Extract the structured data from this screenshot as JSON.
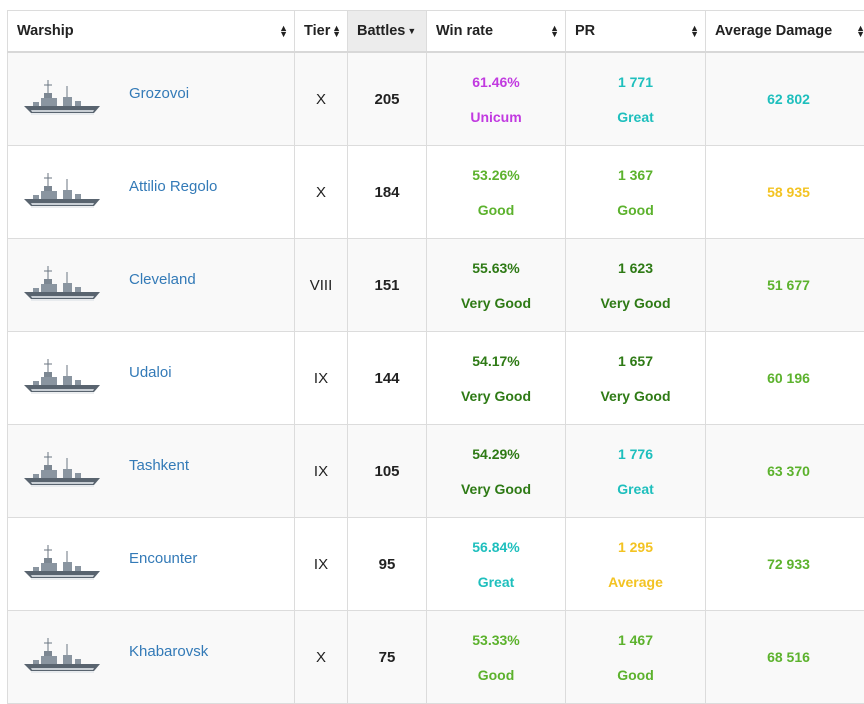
{
  "headers": {
    "warship": "Warship",
    "tier": "Tier",
    "battles": "Battles",
    "winrate": "Win rate",
    "pr": "PR",
    "avg_damage": "Average Damage"
  },
  "colors": {
    "Unicum": "#c13ae0",
    "Great": "#1ebfbd",
    "Good": "#5cb22d",
    "Very Good": "#2e7a15",
    "Average": "#f3c322",
    "link": "#337ab7"
  },
  "rows": [
    {
      "name": "Grozovoi",
      "tier": "X",
      "battles": "205",
      "winrate": "61.46%",
      "winrate_label": "Unicum",
      "pr": "1 771",
      "pr_label": "Great",
      "avg_damage": "62 802",
      "damage_rating": "Great"
    },
    {
      "name": "Attilio Regolo",
      "tier": "X",
      "battles": "184",
      "winrate": "53.26%",
      "winrate_label": "Good",
      "pr": "1 367",
      "pr_label": "Good",
      "avg_damage": "58 935",
      "damage_rating": "Average"
    },
    {
      "name": "Cleveland",
      "tier": "VIII",
      "battles": "151",
      "winrate": "55.63%",
      "winrate_label": "Very Good",
      "pr": "1 623",
      "pr_label": "Very Good",
      "avg_damage": "51 677",
      "damage_rating": "Good"
    },
    {
      "name": "Udaloi",
      "tier": "IX",
      "battles": "144",
      "winrate": "54.17%",
      "winrate_label": "Very Good",
      "pr": "1 657",
      "pr_label": "Very Good",
      "avg_damage": "60 196",
      "damage_rating": "Good"
    },
    {
      "name": "Tashkent",
      "tier": "IX",
      "battles": "105",
      "winrate": "54.29%",
      "winrate_label": "Very Good",
      "pr": "1 776",
      "pr_label": "Great",
      "avg_damage": "63 370",
      "damage_rating": "Good"
    },
    {
      "name": "Encounter",
      "tier": "IX",
      "battles": "95",
      "winrate": "56.84%",
      "winrate_label": "Great",
      "pr": "1 295",
      "pr_label": "Average",
      "avg_damage": "72 933",
      "damage_rating": "Good"
    },
    {
      "name": "Khabarovsk",
      "tier": "X",
      "battles": "75",
      "winrate": "53.33%",
      "winrate_label": "Good",
      "pr": "1 467",
      "pr_label": "Good",
      "avg_damage": "68 516",
      "damage_rating": "Good"
    }
  ]
}
